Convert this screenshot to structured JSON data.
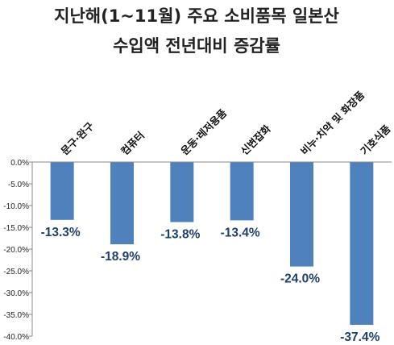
{
  "title_lines": [
    "지난해(1~11월) 주요 소비품목 일본산",
    "수입액 전년대비 증감률"
  ],
  "colors": {
    "bar": "#4f81bd",
    "label": "#1f3f6e",
    "axis": "#888888",
    "grid": "#d9d9d9"
  },
  "chart_data": {
    "type": "bar",
    "title": "지난해(1~11월) 주요 소비품목 일본산 수입액 전년대비 증감률",
    "categories": [
      "문구·완구",
      "컴퓨터",
      "운동·레저용품",
      "신변잡화",
      "비누·치약 및 화장품",
      "기호식품"
    ],
    "values": [
      -13.3,
      -18.9,
      -13.8,
      -13.4,
      -24.0,
      -37.4
    ],
    "data_labels": [
      "-13.3%",
      "-18.9%",
      "-13.8%",
      "-13.4%",
      "-24.0%",
      "-37.4%"
    ],
    "ylim": [
      -40,
      0
    ],
    "yticks": [
      0,
      -5,
      -10,
      -15,
      -20,
      -25,
      -30,
      -35,
      -40
    ],
    "ytick_labels": [
      "0.0%",
      "-5.0%",
      "-10.0%",
      "-15.0%",
      "-20.0%",
      "-25.0%",
      "-30.0%",
      "-35.0%",
      "-40.0%"
    ],
    "grid": false,
    "legend": "none"
  }
}
